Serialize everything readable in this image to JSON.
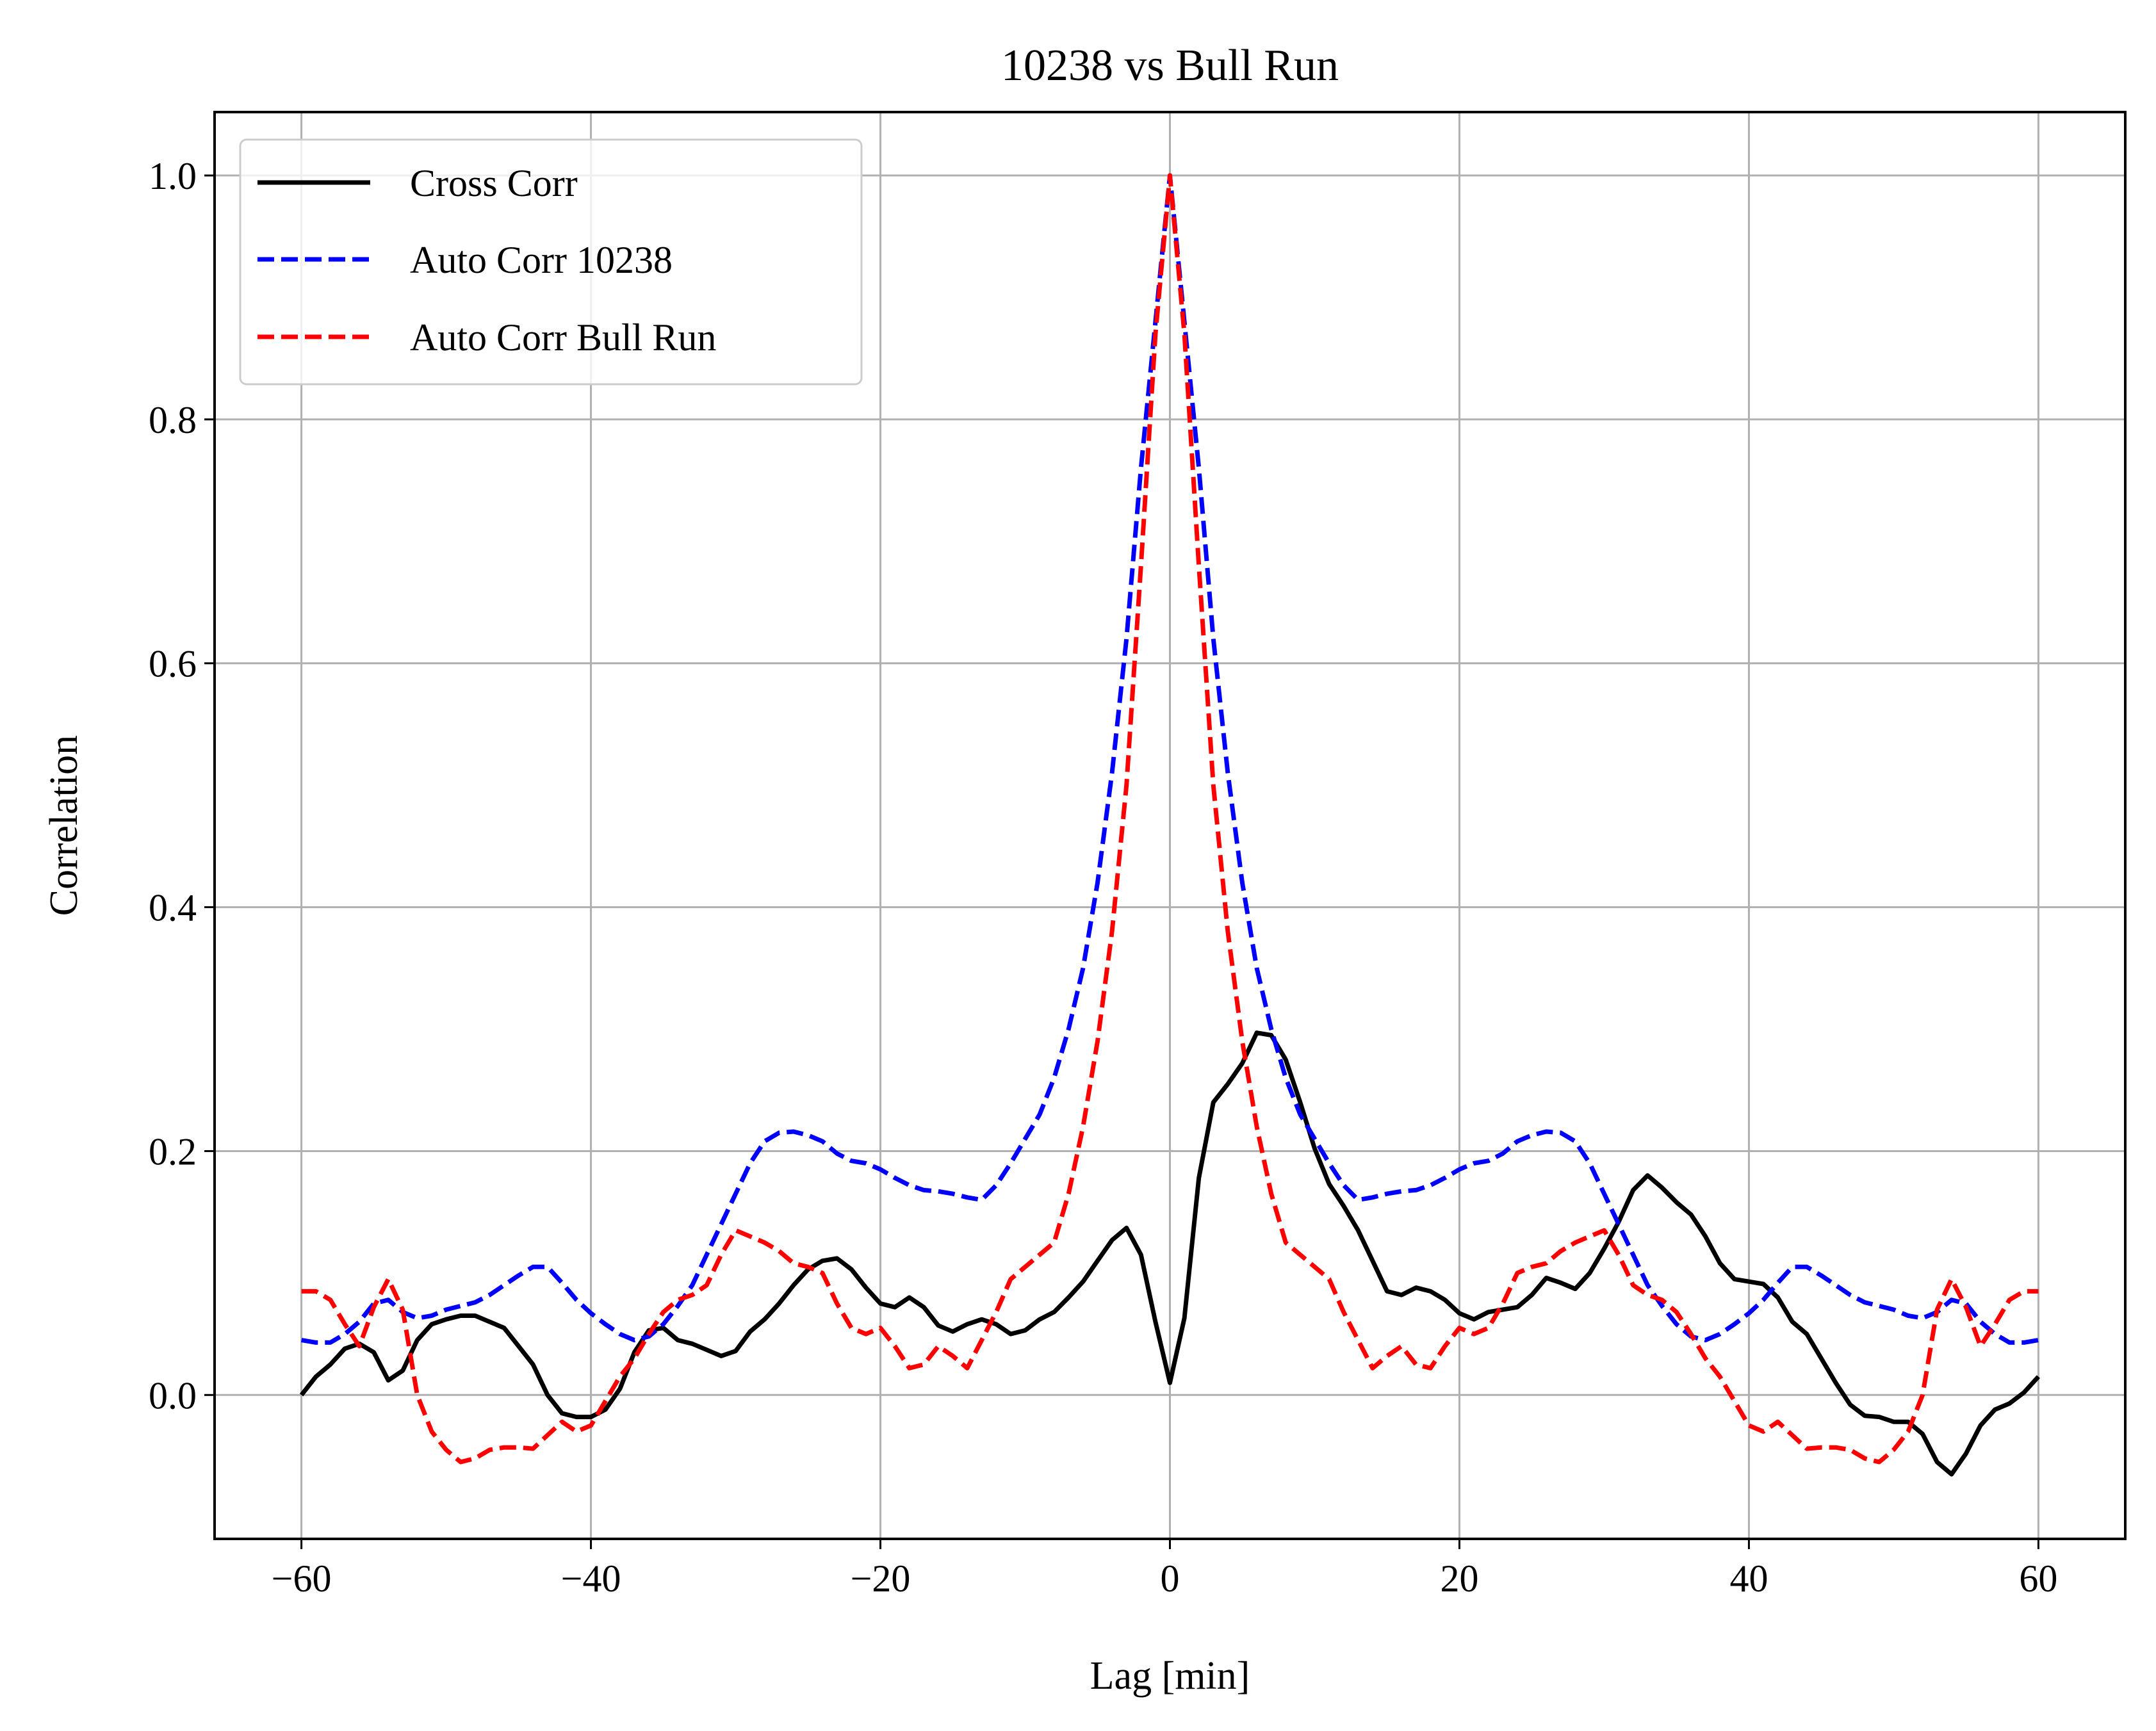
{
  "chart_data": {
    "type": "line",
    "title": "10238 vs Bull Run",
    "xlabel": "Lag [min]",
    "ylabel": "Correlation",
    "xlim": [
      -66,
      66
    ],
    "ylim": [
      -0.118,
      1.052
    ],
    "xticks": [
      -60,
      -40,
      -20,
      0,
      20,
      40,
      60
    ],
    "xtick_labels": [
      "−60",
      "−40",
      "−20",
      "0",
      "20",
      "40",
      "60"
    ],
    "yticks": [
      0.0,
      0.2,
      0.4,
      0.6,
      0.8,
      1.0
    ],
    "ytick_labels": [
      "0.0",
      "0.2",
      "0.4",
      "0.6",
      "0.8",
      "1.0"
    ],
    "grid": true,
    "legend_position": "top-left",
    "series": [
      {
        "name": "Cross Corr",
        "color": "#000000",
        "style": "solid",
        "x": [
          -60,
          -59,
          -58,
          -57,
          -56,
          -55,
          -54,
          -53,
          -52,
          -51,
          -50,
          -49,
          -48,
          -47,
          -46,
          -45,
          -44,
          -43,
          -42,
          -41,
          -40,
          -39,
          -38,
          -37,
          -36,
          -35,
          -34,
          -33,
          -32,
          -31,
          -30,
          -29,
          -28,
          -27,
          -26,
          -25,
          -24,
          -23,
          -22,
          -21,
          -20,
          -19,
          -18,
          -17,
          -16,
          -15,
          -14,
          -13,
          -12,
          -11,
          -10,
          -9,
          -8,
          -7,
          -6,
          -5,
          -4,
          -3,
          -2,
          -1,
          0,
          1,
          2,
          3,
          4,
          5,
          6,
          7,
          8,
          9,
          10,
          11,
          12,
          13,
          14,
          15,
          16,
          17,
          18,
          19,
          20,
          21,
          22,
          23,
          24,
          25,
          26,
          27,
          28,
          29,
          30,
          31,
          32,
          33,
          34,
          35,
          36,
          37,
          38,
          39,
          40,
          41,
          42,
          43,
          44,
          45,
          46,
          47,
          48,
          49,
          50,
          51,
          52,
          53,
          54,
          55,
          56,
          57,
          58,
          59,
          60
        ],
        "y": [
          0.0,
          0.015,
          0.025,
          0.038,
          0.042,
          0.035,
          0.012,
          0.02,
          0.045,
          0.058,
          0.062,
          0.065,
          0.065,
          0.06,
          0.055,
          0.04,
          0.025,
          0.0,
          -0.015,
          -0.018,
          -0.018,
          -0.012,
          0.005,
          0.035,
          0.053,
          0.055,
          0.045,
          0.042,
          0.037,
          0.032,
          0.036,
          0.052,
          0.062,
          0.075,
          0.09,
          0.103,
          0.11,
          0.112,
          0.103,
          0.088,
          0.075,
          0.072,
          0.08,
          0.072,
          0.057,
          0.052,
          0.058,
          0.062,
          0.058,
          0.05,
          0.053,
          0.062,
          0.068,
          0.08,
          0.093,
          0.11,
          0.127,
          0.137,
          0.115,
          0.06,
          0.01,
          0.063,
          0.178,
          0.24,
          0.255,
          0.272,
          0.297,
          0.295,
          0.275,
          0.24,
          0.202,
          0.173,
          0.155,
          0.135,
          0.11,
          0.085,
          0.082,
          0.088,
          0.085,
          0.078,
          0.067,
          0.062,
          0.068,
          0.07,
          0.072,
          0.082,
          0.096,
          0.092,
          0.087,
          0.1,
          0.12,
          0.142,
          0.168,
          0.18,
          0.17,
          0.158,
          0.148,
          0.13,
          0.108,
          0.095,
          0.093,
          0.091,
          0.08,
          0.06,
          0.05,
          0.03,
          0.01,
          -0.008,
          -0.017,
          -0.018,
          -0.022,
          -0.022,
          -0.032,
          -0.055,
          -0.065,
          -0.048,
          -0.025,
          -0.012,
          -0.007,
          0.002,
          0.015
        ]
      },
      {
        "name": "Auto Corr 10238",
        "color": "#0000ff",
        "style": "dashed",
        "x": [
          -60,
          -59,
          -58,
          -57,
          -56,
          -55,
          -54,
          -53,
          -52,
          -51,
          -50,
          -49,
          -48,
          -47,
          -46,
          -45,
          -44,
          -43,
          -42,
          -41,
          -40,
          -39,
          -38,
          -37,
          -36,
          -35,
          -34,
          -33,
          -32,
          -31,
          -30,
          -29,
          -28,
          -27,
          -26,
          -25,
          -24,
          -23,
          -22,
          -21,
          -20,
          -19,
          -18,
          -17,
          -16,
          -15,
          -14,
          -13,
          -12,
          -11,
          -10,
          -9,
          -8,
          -7,
          -6,
          -5,
          -4,
          -3,
          -2,
          -1,
          0,
          1,
          2,
          3,
          4,
          5,
          6,
          7,
          8,
          9,
          10,
          11,
          12,
          13,
          14,
          15,
          16,
          17,
          18,
          19,
          20,
          21,
          22,
          23,
          24,
          25,
          26,
          27,
          28,
          29,
          30,
          31,
          32,
          33,
          34,
          35,
          36,
          37,
          38,
          39,
          40,
          41,
          42,
          43,
          44,
          45,
          46,
          47,
          48,
          49,
          50,
          51,
          52,
          53,
          54,
          55,
          56,
          57,
          58,
          59,
          60
        ],
        "y": [
          0.045,
          0.043,
          0.043,
          0.05,
          0.06,
          0.075,
          0.078,
          0.068,
          0.063,
          0.065,
          0.07,
          0.073,
          0.076,
          0.082,
          0.09,
          0.098,
          0.105,
          0.105,
          0.092,
          0.078,
          0.067,
          0.058,
          0.05,
          0.045,
          0.048,
          0.058,
          0.073,
          0.09,
          0.115,
          0.14,
          0.165,
          0.19,
          0.208,
          0.215,
          0.216,
          0.213,
          0.208,
          0.198,
          0.192,
          0.19,
          0.185,
          0.178,
          0.172,
          0.168,
          0.167,
          0.165,
          0.162,
          0.16,
          0.172,
          0.19,
          0.21,
          0.23,
          0.26,
          0.3,
          0.35,
          0.42,
          0.51,
          0.62,
          0.76,
          0.88,
          1.0,
          0.88,
          0.76,
          0.62,
          0.51,
          0.42,
          0.35,
          0.3,
          0.26,
          0.23,
          0.21,
          0.19,
          0.172,
          0.16,
          0.162,
          0.165,
          0.167,
          0.168,
          0.172,
          0.178,
          0.185,
          0.19,
          0.192,
          0.198,
          0.208,
          0.213,
          0.216,
          0.215,
          0.208,
          0.19,
          0.165,
          0.14,
          0.115,
          0.09,
          0.073,
          0.058,
          0.048,
          0.045,
          0.05,
          0.058,
          0.067,
          0.078,
          0.092,
          0.105,
          0.105,
          0.098,
          0.09,
          0.082,
          0.076,
          0.073,
          0.07,
          0.065,
          0.063,
          0.068,
          0.078,
          0.075,
          0.06,
          0.05,
          0.043,
          0.043,
          0.045
        ]
      },
      {
        "name": "Auto Corr Bull Run",
        "color": "#ff0000",
        "style": "dashed",
        "x": [
          -60,
          -59,
          -58,
          -57,
          -56,
          -55,
          -54,
          -53,
          -52,
          -51,
          -50,
          -49,
          -48,
          -47,
          -46,
          -45,
          -44,
          -43,
          -42,
          -41,
          -40,
          -39,
          -38,
          -37,
          -36,
          -35,
          -34,
          -33,
          -32,
          -31,
          -30,
          -29,
          -28,
          -27,
          -26,
          -25,
          -24,
          -23,
          -22,
          -21,
          -20,
          -19,
          -18,
          -17,
          -16,
          -15,
          -14,
          -13,
          -12,
          -11,
          -10,
          -9,
          -8,
          -7,
          -6,
          -5,
          -4,
          -3,
          -2,
          -1,
          0,
          1,
          2,
          3,
          4,
          5,
          6,
          7,
          8,
          9,
          10,
          11,
          12,
          13,
          14,
          15,
          16,
          17,
          18,
          19,
          20,
          21,
          22,
          23,
          24,
          25,
          26,
          27,
          28,
          29,
          30,
          31,
          32,
          33,
          34,
          35,
          36,
          37,
          38,
          39,
          40,
          41,
          42,
          43,
          44,
          45,
          46,
          47,
          48,
          49,
          50,
          51,
          52,
          53,
          54,
          55,
          56,
          57,
          58,
          59,
          60
        ],
        "y": [
          0.085,
          0.085,
          0.078,
          0.058,
          0.04,
          0.072,
          0.095,
          0.07,
          0.0,
          -0.03,
          -0.045,
          -0.055,
          -0.052,
          -0.045,
          -0.043,
          -0.043,
          -0.044,
          -0.033,
          -0.022,
          -0.03,
          -0.025,
          -0.005,
          0.015,
          0.03,
          0.05,
          0.068,
          0.078,
          0.082,
          0.09,
          0.115,
          0.135,
          0.13,
          0.125,
          0.118,
          0.108,
          0.105,
          0.1,
          0.075,
          0.055,
          0.05,
          0.055,
          0.04,
          0.022,
          0.025,
          0.04,
          0.032,
          0.022,
          0.045,
          0.068,
          0.095,
          0.105,
          0.115,
          0.125,
          0.165,
          0.22,
          0.29,
          0.38,
          0.5,
          0.68,
          0.87,
          1.0,
          0.87,
          0.68,
          0.5,
          0.38,
          0.29,
          0.22,
          0.165,
          0.125,
          0.115,
          0.105,
          0.095,
          0.068,
          0.045,
          0.022,
          0.032,
          0.04,
          0.025,
          0.022,
          0.04,
          0.055,
          0.05,
          0.055,
          0.075,
          0.1,
          0.105,
          0.108,
          0.118,
          0.125,
          0.13,
          0.135,
          0.115,
          0.09,
          0.082,
          0.078,
          0.068,
          0.05,
          0.03,
          0.015,
          -0.005,
          -0.025,
          -0.03,
          -0.022,
          -0.033,
          -0.044,
          -0.043,
          -0.043,
          -0.045,
          -0.052,
          -0.055,
          -0.045,
          -0.03,
          0.0,
          0.07,
          0.095,
          0.072,
          0.04,
          0.058,
          0.078,
          0.085,
          0.085
        ]
      }
    ]
  }
}
